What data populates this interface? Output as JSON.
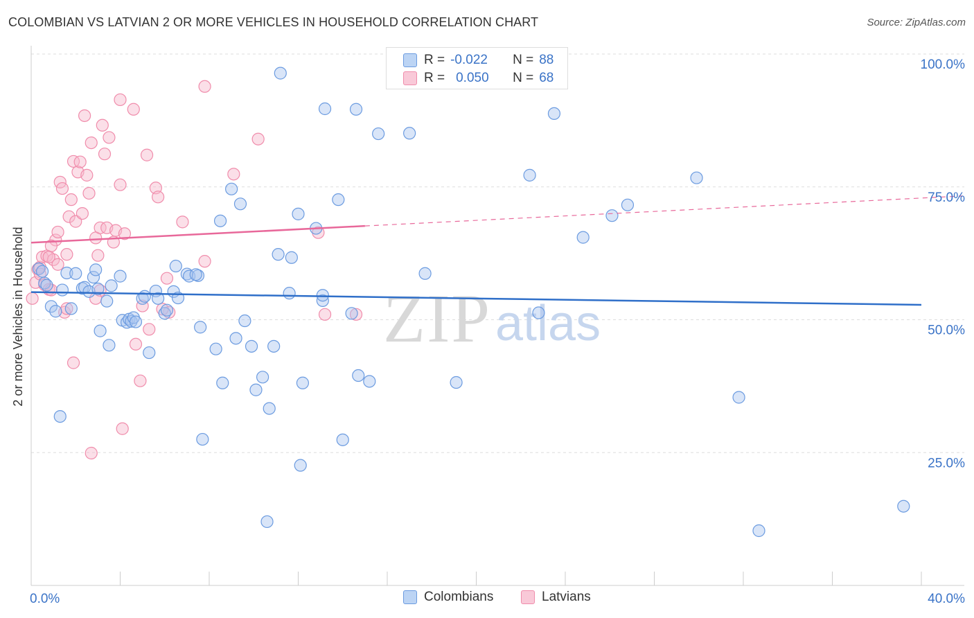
{
  "title": "COLOMBIAN VS LATVIAN 2 OR MORE VEHICLES IN HOUSEHOLD CORRELATION CHART",
  "source": "Source: ZipAtlas.com",
  "watermark": {
    "zip": "ZIP",
    "atlas": "atlas"
  },
  "stats": [
    {
      "r_label": "R =",
      "r_value": "-0.022",
      "n_label": "N =",
      "n_value": "88",
      "color": "#6b9be0"
    },
    {
      "r_label": "R =",
      "r_value": "0.050",
      "n_label": "N =",
      "n_value": "68",
      "color": "#f08cab"
    }
  ],
  "legend": [
    {
      "name": "Colombians",
      "color": "#6b9be0"
    },
    {
      "name": "Latvians",
      "color": "#f08cab"
    }
  ],
  "chart_data": {
    "type": "scatter",
    "xlabel": "",
    "ylabel": "2 or more Vehicles in Household",
    "xlim": [
      0,
      40
    ],
    "ylim": [
      0,
      100
    ],
    "x_tick_labels": [
      "0.0%",
      "40.0%"
    ],
    "y_tick_labels": [
      "100.0%",
      "75.0%",
      "50.0%",
      "25.0%"
    ],
    "y_tick_values": [
      100,
      75,
      50,
      25
    ],
    "grid": true,
    "series": [
      {
        "name": "Colombians",
        "color": "#6b9be0",
        "trend": {
          "x": [
            0,
            40
          ],
          "y": [
            55.2,
            52.8
          ],
          "dashed_from": null
        },
        "points": [
          {
            "x": 0.35,
            "y": 59.6
          },
          {
            "x": 0.5,
            "y": 59.1
          },
          {
            "x": 0.6,
            "y": 56.9
          },
          {
            "x": 0.7,
            "y": 56.5
          },
          {
            "x": 0.9,
            "y": 52.5
          },
          {
            "x": 1.1,
            "y": 51.6
          },
          {
            "x": 1.4,
            "y": 55.6
          },
          {
            "x": 1.6,
            "y": 58.8
          },
          {
            "x": 1.8,
            "y": 52.1
          },
          {
            "x": 2.0,
            "y": 58.7
          },
          {
            "x": 2.3,
            "y": 55.9
          },
          {
            "x": 2.4,
            "y": 56.1
          },
          {
            "x": 2.6,
            "y": 55.3
          },
          {
            "x": 2.8,
            "y": 58.0
          },
          {
            "x": 2.9,
            "y": 59.4
          },
          {
            "x": 3.1,
            "y": 47.9
          },
          {
            "x": 3.4,
            "y": 53.5
          },
          {
            "x": 3.5,
            "y": 45.2
          },
          {
            "x": 3.6,
            "y": 56.4
          },
          {
            "x": 4.0,
            "y": 58.2
          },
          {
            "x": 4.1,
            "y": 49.9
          },
          {
            "x": 4.3,
            "y": 49.5
          },
          {
            "x": 4.4,
            "y": 50.1
          },
          {
            "x": 4.5,
            "y": 49.7
          },
          {
            "x": 4.6,
            "y": 50.4
          },
          {
            "x": 5.0,
            "y": 54.0
          },
          {
            "x": 5.1,
            "y": 54.4
          },
          {
            "x": 5.3,
            "y": 43.8
          },
          {
            "x": 5.6,
            "y": 55.4
          },
          {
            "x": 5.7,
            "y": 54.0
          },
          {
            "x": 6.0,
            "y": 51.2
          },
          {
            "x": 6.1,
            "y": 51.8
          },
          {
            "x": 6.4,
            "y": 55.3
          },
          {
            "x": 6.5,
            "y": 60.1
          },
          {
            "x": 6.6,
            "y": 54.1
          },
          {
            "x": 7.0,
            "y": 58.6
          },
          {
            "x": 7.1,
            "y": 58.2
          },
          {
            "x": 7.5,
            "y": 58.3
          },
          {
            "x": 7.6,
            "y": 48.6
          },
          {
            "x": 8.3,
            "y": 44.5
          },
          {
            "x": 8.6,
            "y": 38.1
          },
          {
            "x": 9.0,
            "y": 74.6
          },
          {
            "x": 9.4,
            "y": 71.8
          },
          {
            "x": 9.9,
            "y": 45.0
          },
          {
            "x": 10.4,
            "y": 39.2
          },
          {
            "x": 10.7,
            "y": 33.3
          },
          {
            "x": 10.9,
            "y": 45.0
          },
          {
            "x": 11.1,
            "y": 62.3
          },
          {
            "x": 11.6,
            "y": 55.0
          },
          {
            "x": 11.7,
            "y": 61.7
          },
          {
            "x": 12.0,
            "y": 69.9
          },
          {
            "x": 12.2,
            "y": 38.1
          },
          {
            "x": 12.8,
            "y": 67.2
          },
          {
            "x": 13.1,
            "y": 53.6
          },
          {
            "x": 13.8,
            "y": 72.6
          },
          {
            "x": 14.0,
            "y": 27.4
          },
          {
            "x": 14.4,
            "y": 51.2
          },
          {
            "x": 14.7,
            "y": 39.5
          },
          {
            "x": 15.2,
            "y": 38.4
          },
          {
            "x": 15.6,
            "y": 85.0
          },
          {
            "x": 11.2,
            "y": 96.4
          },
          {
            "x": 13.2,
            "y": 89.7
          },
          {
            "x": 14.6,
            "y": 89.6
          },
          {
            "x": 17.0,
            "y": 85.1
          },
          {
            "x": 17.7,
            "y": 58.7
          },
          {
            "x": 19.1,
            "y": 38.2
          },
          {
            "x": 22.4,
            "y": 77.2
          },
          {
            "x": 22.8,
            "y": 51.3
          },
          {
            "x": 23.5,
            "y": 88.8
          },
          {
            "x": 24.8,
            "y": 65.5
          },
          {
            "x": 26.1,
            "y": 69.6
          },
          {
            "x": 26.8,
            "y": 71.6
          },
          {
            "x": 29.9,
            "y": 76.7
          },
          {
            "x": 31.8,
            "y": 35.4
          },
          {
            "x": 32.7,
            "y": 10.3
          },
          {
            "x": 39.2,
            "y": 14.9
          },
          {
            "x": 10.1,
            "y": 36.8
          },
          {
            "x": 8.5,
            "y": 68.6
          },
          {
            "x": 7.7,
            "y": 27.5
          },
          {
            "x": 9.6,
            "y": 49.8
          },
          {
            "x": 12.1,
            "y": 22.6
          },
          {
            "x": 10.6,
            "y": 12.0
          },
          {
            "x": 1.3,
            "y": 31.8
          },
          {
            "x": 9.2,
            "y": 46.5
          },
          {
            "x": 13.1,
            "y": 54.6
          },
          {
            "x": 3.0,
            "y": 55.8
          },
          {
            "x": 4.7,
            "y": 49.6
          },
          {
            "x": 7.4,
            "y": 58.5
          }
        ]
      },
      {
        "name": "Latvians",
        "color": "#f08cab",
        "trend": {
          "x": [
            0,
            40
          ],
          "y": [
            64.5,
            72.9
          ],
          "dashed_from": 15.0
        },
        "points": [
          {
            "x": 0.05,
            "y": 54.0
          },
          {
            "x": 0.2,
            "y": 57.0
          },
          {
            "x": 0.3,
            "y": 59.5
          },
          {
            "x": 0.4,
            "y": 59.9
          },
          {
            "x": 0.5,
            "y": 61.8
          },
          {
            "x": 0.6,
            "y": 56.6
          },
          {
            "x": 0.7,
            "y": 62.0
          },
          {
            "x": 0.8,
            "y": 55.7
          },
          {
            "x": 0.9,
            "y": 55.6
          },
          {
            "x": 1.0,
            "y": 61.3
          },
          {
            "x": 1.1,
            "y": 65.0
          },
          {
            "x": 1.2,
            "y": 60.4
          },
          {
            "x": 1.3,
            "y": 75.9
          },
          {
            "x": 1.4,
            "y": 74.7
          },
          {
            "x": 1.5,
            "y": 51.4
          },
          {
            "x": 1.6,
            "y": 52.1
          },
          {
            "x": 1.7,
            "y": 69.4
          },
          {
            "x": 1.8,
            "y": 72.6
          },
          {
            "x": 1.9,
            "y": 79.8
          },
          {
            "x": 2.0,
            "y": 68.5
          },
          {
            "x": 2.1,
            "y": 77.8
          },
          {
            "x": 2.2,
            "y": 79.7
          },
          {
            "x": 2.3,
            "y": 70.0
          },
          {
            "x": 2.4,
            "y": 88.4
          },
          {
            "x": 2.6,
            "y": 73.8
          },
          {
            "x": 2.7,
            "y": 83.3
          },
          {
            "x": 2.9,
            "y": 65.4
          },
          {
            "x": 3.0,
            "y": 62.1
          },
          {
            "x": 3.1,
            "y": 67.3
          },
          {
            "x": 3.2,
            "y": 86.6
          },
          {
            "x": 3.3,
            "y": 81.2
          },
          {
            "x": 3.4,
            "y": 67.3
          },
          {
            "x": 3.5,
            "y": 84.3
          },
          {
            "x": 3.7,
            "y": 64.6
          },
          {
            "x": 3.8,
            "y": 66.8
          },
          {
            "x": 4.0,
            "y": 75.4
          },
          {
            "x": 4.2,
            "y": 66.2
          },
          {
            "x": 4.6,
            "y": 89.6
          },
          {
            "x": 4.7,
            "y": 45.4
          },
          {
            "x": 4.9,
            "y": 38.5
          },
          {
            "x": 5.0,
            "y": 52.6
          },
          {
            "x": 5.2,
            "y": 81.0
          },
          {
            "x": 5.3,
            "y": 48.2
          },
          {
            "x": 5.6,
            "y": 74.8
          },
          {
            "x": 5.7,
            "y": 73.1
          },
          {
            "x": 6.1,
            "y": 57.8
          },
          {
            "x": 6.2,
            "y": 51.4
          },
          {
            "x": 6.8,
            "y": 68.4
          },
          {
            "x": 7.8,
            "y": 93.9
          },
          {
            "x": 9.1,
            "y": 77.4
          },
          {
            "x": 10.2,
            "y": 84.0
          },
          {
            "x": 12.9,
            "y": 66.4
          },
          {
            "x": 13.2,
            "y": 51.0
          },
          {
            "x": 14.6,
            "y": 51.0
          },
          {
            "x": 7.8,
            "y": 61.0
          },
          {
            "x": 0.9,
            "y": 63.9
          },
          {
            "x": 1.9,
            "y": 41.9
          },
          {
            "x": 2.7,
            "y": 24.9
          },
          {
            "x": 4.1,
            "y": 29.5
          },
          {
            "x": 4.0,
            "y": 91.4
          },
          {
            "x": 3.1,
            "y": 55.5
          },
          {
            "x": 1.2,
            "y": 66.5
          },
          {
            "x": 2.9,
            "y": 54.0
          },
          {
            "x": 1.6,
            "y": 62.3
          },
          {
            "x": 0.4,
            "y": 58.6
          },
          {
            "x": 0.8,
            "y": 61.8
          },
          {
            "x": 5.9,
            "y": 52.0
          },
          {
            "x": 2.5,
            "y": 77.2
          }
        ]
      }
    ]
  }
}
